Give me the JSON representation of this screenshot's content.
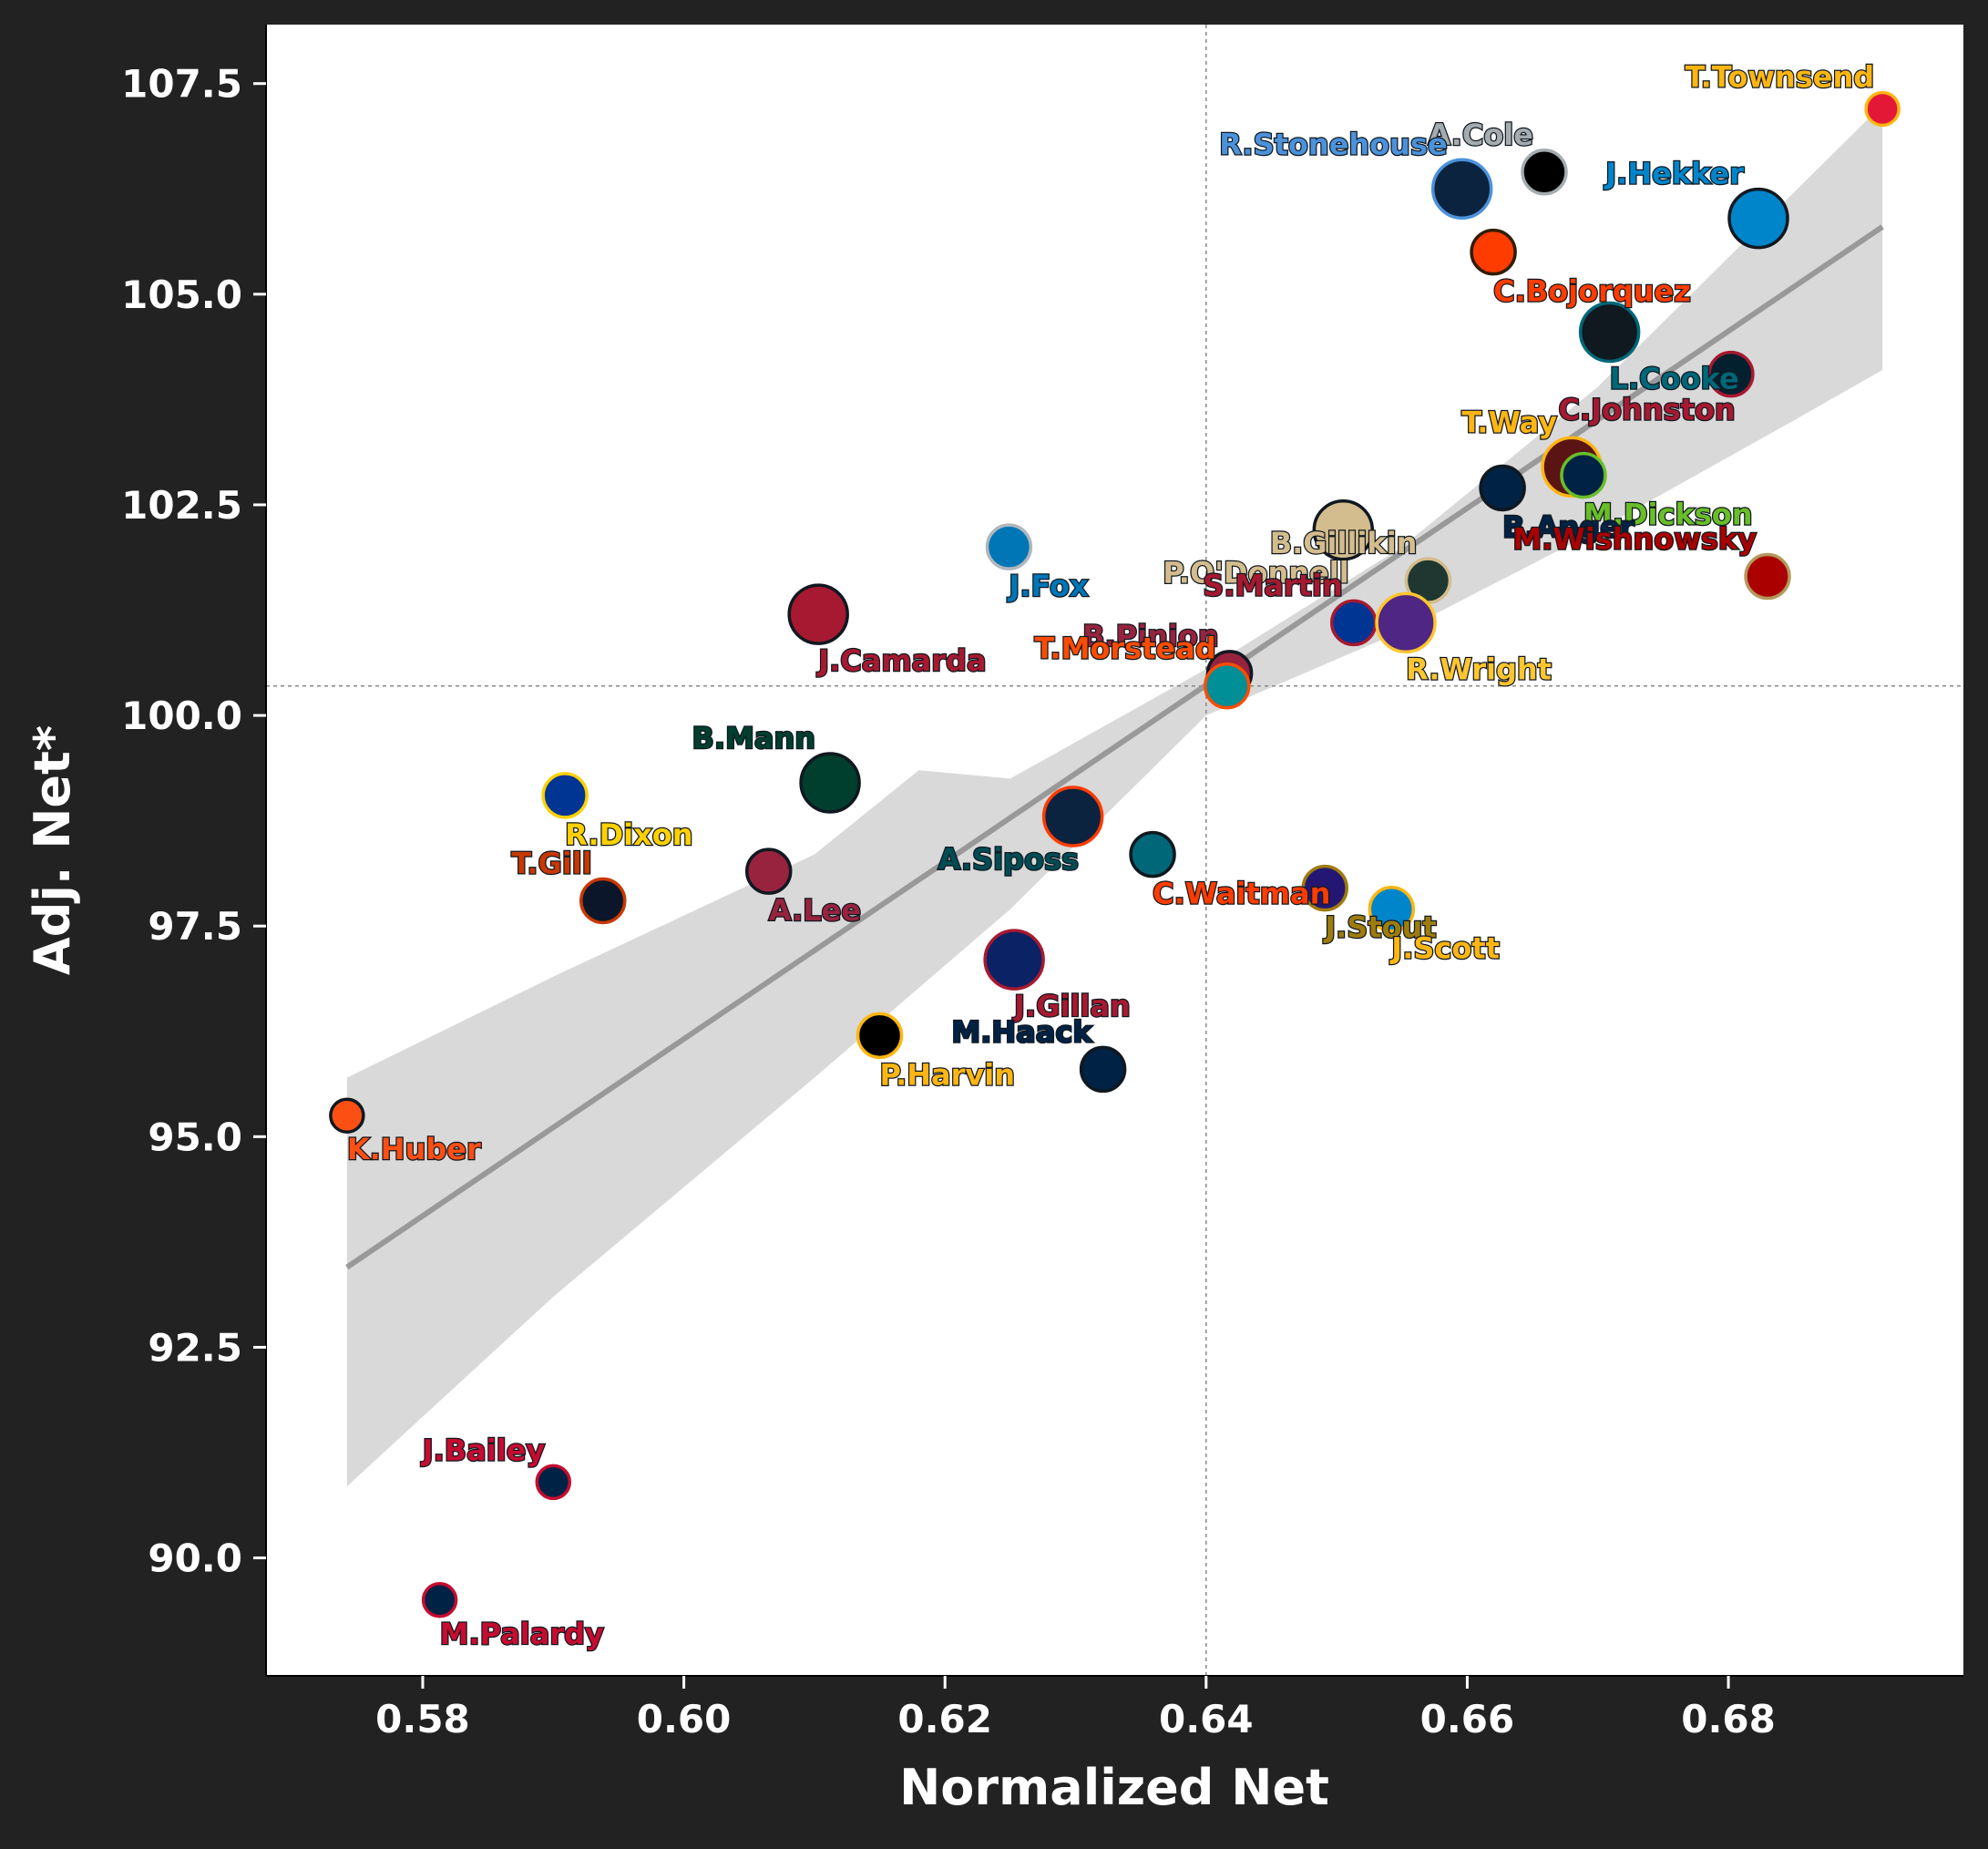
{
  "chart_data": {
    "type": "scatter",
    "title": "",
    "xlabel": "Normalized Net",
    "ylabel": "Adj. Net*",
    "xlim": [
      0.568,
      0.698
    ],
    "ylim": [
      88.6,
      108.2
    ],
    "xticks": [
      0.58,
      0.6,
      0.62,
      0.64,
      0.66,
      0.68
    ],
    "yticks": [
      90.0,
      92.5,
      95.0,
      97.5,
      100.0,
      102.5,
      105.0,
      107.5
    ],
    "xtick_labels": [
      "0.58",
      "0.60",
      "0.62",
      "0.64",
      "0.66",
      "0.68"
    ],
    "ytick_labels": [
      "90.0",
      "92.5",
      "95.0",
      "97.5",
      "100.0",
      "102.5",
      "105.0",
      "107.5"
    ],
    "grid": false,
    "reference_lines": {
      "x_mean": 0.64,
      "y_mean": 100.35
    },
    "trendline": {
      "x": [
        0.5742,
        0.6918
      ],
      "y": [
        93.45,
        105.8
      ],
      "ci_upper": [
        [
          0.5742,
          95.7
        ],
        [
          0.59,
          96.9
        ],
        [
          0.61,
          98.35
        ],
        [
          0.618,
          99.35
        ],
        [
          0.625,
          99.25
        ],
        [
          0.64,
          100.55
        ],
        [
          0.655,
          102.0
        ],
        [
          0.67,
          103.9
        ],
        [
          0.6918,
          107.25
        ]
      ],
      "ci_lower": [
        [
          0.5742,
          90.85
        ],
        [
          0.59,
          93.1
        ],
        [
          0.61,
          95.7
        ],
        [
          0.625,
          97.7
        ],
        [
          0.64,
          100.0
        ],
        [
          0.655,
          101.0
        ],
        [
          0.67,
          102.2
        ],
        [
          0.685,
          103.5
        ],
        [
          0.6918,
          104.1
        ]
      ]
    },
    "points": [
      {
        "label": "T.Townsend",
        "x": 0.6918,
        "y": 107.2,
        "fill": "#E31837",
        "edge": "#FFB612",
        "text": "#FFB612",
        "size": "small",
        "lpos": "tl"
      },
      {
        "label": "A.Cole",
        "x": 0.6659,
        "y": 106.45,
        "fill": "#000000",
        "edge": "#A5ACAF",
        "text": "#A5ACAF",
        "size": "med",
        "lpos": "tl"
      },
      {
        "label": "R.Stonehouse",
        "x": 0.6596,
        "y": 106.25,
        "fill": "#0C2340",
        "edge": "#4B92DB",
        "text": "#4B92DB",
        "size": "large",
        "lpos": "tl"
      },
      {
        "label": "J.Hekker",
        "x": 0.6823,
        "y": 105.9,
        "fill": "#0085CA",
        "edge": "#101820",
        "text": "#0085CA",
        "size": "large",
        "lpos": "tl"
      },
      {
        "label": "C.Bojorquez",
        "x": 0.662,
        "y": 105.5,
        "fill": "#FF3C00",
        "edge": "#311D00",
        "text": "#FF3C00",
        "size": "med",
        "lpos": "br"
      },
      {
        "label": "L.Cooke",
        "x": 0.6709,
        "y": 104.55,
        "fill": "#101820",
        "edge": "#006778",
        "text": "#006778",
        "size": "large",
        "lpos": "br"
      },
      {
        "label": "C.Johnston",
        "x": 0.6802,
        "y": 104.05,
        "fill": "#03202F",
        "edge": "#A71930",
        "text": "#A71930",
        "size": "med",
        "lpos": "bl"
      },
      {
        "label": "T.Way",
        "x": 0.668,
        "y": 102.95,
        "fill": "#5A1414",
        "edge": "#FFB612",
        "text": "#FFB612",
        "size": "large",
        "lpos": "tl"
      },
      {
        "label": "M.Dickson",
        "x": 0.6689,
        "y": 102.85,
        "fill": "#002244",
        "edge": "#69BE28",
        "text": "#69BE28",
        "size": "med",
        "lpos": "br"
      },
      {
        "label": "B.Anger",
        "x": 0.6627,
        "y": 102.7,
        "fill": "#002244",
        "edge": "#101820",
        "text": "#002244",
        "size": "med",
        "lpos": "br"
      },
      {
        "label": "P.O'Donnell",
        "x": 0.6505,
        "y": 102.2,
        "fill": "#D3BC8D",
        "edge": "#101820",
        "text": "#D3BC8D",
        "size": "large",
        "lpos": "bl"
      },
      {
        "label": "M.Wishnowsky",
        "x": 0.683,
        "y": 101.65,
        "fill": "#AA0000",
        "edge": "#B3995D",
        "text": "#AA0000",
        "size": "med",
        "lpos": "tl"
      },
      {
        "label": "B.Gillikin",
        "x": 0.657,
        "y": 101.6,
        "fill": "#203731",
        "edge": "#D3BC8D",
        "text": "#D3BC8D",
        "size": "med",
        "lpos": "tl"
      },
      {
        "label": "J.Fox",
        "x": 0.6249,
        "y": 102.0,
        "fill": "#0076B6",
        "edge": "#B0B7BC",
        "text": "#0076B6",
        "size": "med",
        "lpos": "br"
      },
      {
        "label": "S.Martin",
        "x": 0.6513,
        "y": 101.1,
        "fill": "#003594",
        "edge": "#A71930",
        "text": "#A71930",
        "size": "med",
        "lpos": "tl"
      },
      {
        "label": "R.Wright",
        "x": 0.6553,
        "y": 101.1,
        "fill": "#4F2683",
        "edge": "#FFC62F",
        "text": "#FFC62F",
        "size": "large",
        "lpos": "br"
      },
      {
        "label": "J.Camarda",
        "x": 0.6103,
        "y": 101.2,
        "fill": "#A71930",
        "edge": "#101820",
        "text": "#A71930",
        "size": "large",
        "lpos": "br"
      },
      {
        "label": "B.Pinion",
        "x": 0.6418,
        "y": 100.5,
        "fill": "#97233F",
        "edge": "#101820",
        "text": "#97233F",
        "size": "med",
        "lpos": "tl"
      },
      {
        "label": "T.Morstead",
        "x": 0.6416,
        "y": 100.35,
        "fill": "#008E97",
        "edge": "#FC4C02",
        "text": "#FC4C02",
        "size": "med",
        "lpos": "tl"
      },
      {
        "label": "B.Mann",
        "x": 0.6112,
        "y": 99.2,
        "fill": "#003F2D",
        "edge": "#101820",
        "text": "#003F2D",
        "size": "large",
        "lpos": "tl"
      },
      {
        "label": "R.Dixon",
        "x": 0.5909,
        "y": 99.05,
        "fill": "#003594",
        "edge": "#FFD100",
        "text": "#FFD100",
        "size": "med",
        "lpos": "br"
      },
      {
        "label": "A.Siposs",
        "x": 0.6298,
        "y": 98.8,
        "fill": "#0C2340",
        "edge": "#FF3C00",
        "text": "#004C54",
        "size": "large",
        "lpos": "bl"
      },
      {
        "label": "C.Waitman",
        "x": 0.6359,
        "y": 98.35,
        "fill": "#006778",
        "edge": "#101820",
        "text": "#FF3C00",
        "size": "med",
        "lpos": "br"
      },
      {
        "label": "T.Gill",
        "x": 0.5938,
        "y": 97.8,
        "fill": "#0B162A",
        "edge": "#C83803",
        "text": "#C83803",
        "size": "med",
        "lpos": "tl"
      },
      {
        "label": "A.Lee",
        "x": 0.6065,
        "y": 98.15,
        "fill": "#97233F",
        "edge": "#101820",
        "text": "#97233F",
        "size": "med",
        "lpos": "br"
      },
      {
        "label": "J.Stout",
        "x": 0.6491,
        "y": 97.95,
        "fill": "#241773",
        "edge": "#9E7C0C",
        "text": "#9E7C0C",
        "size": "med",
        "lpos": "br"
      },
      {
        "label": "J.Scott",
        "x": 0.6542,
        "y": 97.7,
        "fill": "#0085CA",
        "edge": "#FFB612",
        "text": "#FFB612",
        "size": "med",
        "lpos": "br"
      },
      {
        "label": "J.Gillan",
        "x": 0.6253,
        "y": 97.1,
        "fill": "#0B2265",
        "edge": "#A71930",
        "text": "#A71930",
        "size": "large",
        "lpos": "br"
      },
      {
        "label": "P.Harvin",
        "x": 0.615,
        "y": 96.2,
        "fill": "#000000",
        "edge": "#FFB612",
        "text": "#FFB612",
        "size": "med",
        "lpos": "br"
      },
      {
        "label": "M.Haack",
        "x": 0.6321,
        "y": 95.8,
        "fill": "#002244",
        "edge": "#101820",
        "text": "#002244",
        "size": "med",
        "lpos": "tl"
      },
      {
        "label": "K.Huber",
        "x": 0.5742,
        "y": 95.25,
        "fill": "#FB4F14",
        "edge": "#101820",
        "text": "#FB4F14",
        "size": "small",
        "lpos": "br"
      },
      {
        "label": "J.Bailey",
        "x": 0.59,
        "y": 90.9,
        "fill": "#002244",
        "edge": "#C60C30",
        "text": "#C60C30",
        "size": "small",
        "lpos": "tl"
      },
      {
        "label": "M.Palardy",
        "x": 0.5813,
        "y": 89.5,
        "fill": "#002244",
        "edge": "#C60C30",
        "text": "#C60C30",
        "size": "small",
        "lpos": "br"
      }
    ]
  }
}
